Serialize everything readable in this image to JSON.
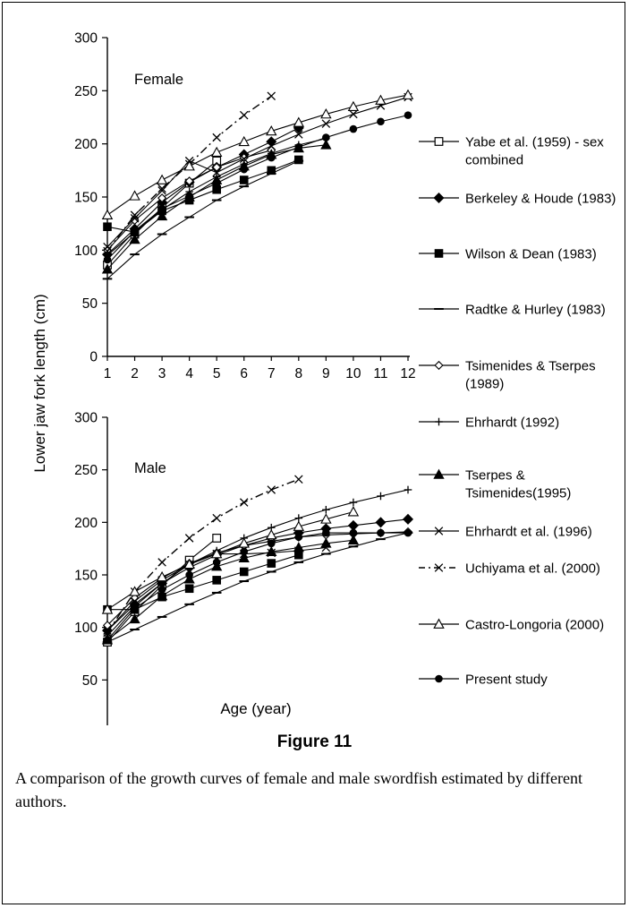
{
  "figure": {
    "title": "Figure 11",
    "caption": "A comparison of the growth curves of female and male swordfish estimated by different authors."
  },
  "chart_data": {
    "type": "line",
    "ylabel": "Lower jaw fork length (cm)",
    "xlabel": "Age (year)",
    "x": [
      1,
      2,
      3,
      4,
      5,
      6,
      7,
      8,
      9,
      10,
      11,
      12
    ],
    "ylim": [
      0,
      300
    ],
    "yticks": [
      0,
      50,
      100,
      150,
      200,
      250,
      300
    ],
    "legend_placement": "right",
    "series_styles": [
      {
        "marker": "square-open",
        "dash": "solid",
        "color": "#000000"
      },
      {
        "marker": "diamond-filled",
        "dash": "solid",
        "color": "#000000"
      },
      {
        "marker": "square-filled",
        "dash": "solid",
        "color": "#000000"
      },
      {
        "marker": "hbar",
        "dash": "solid",
        "color": "#000000"
      },
      {
        "marker": "diamond-open",
        "dash": "solid",
        "color": "#000000"
      },
      {
        "marker": "plus",
        "dash": "solid",
        "color": "#000000"
      },
      {
        "marker": "triangle-filled",
        "dash": "solid",
        "color": "#000000"
      },
      {
        "marker": "cross",
        "dash": "solid",
        "color": "#000000"
      },
      {
        "marker": "cross",
        "dash": "dashdot",
        "color": "#000000"
      },
      {
        "marker": "triangle-open",
        "dash": "solid",
        "color": "#000000"
      },
      {
        "marker": "circle-filled",
        "dash": "solid",
        "color": "#000000"
      }
    ],
    "legend": [
      "Yabe et al. (1959) - sex combined",
      "Berkeley & Houde (1983)",
      "Wilson & Dean (1983)",
      "Radtke & Hurley (1983)",
      "Tsimenides & Tserpes (1989)",
      "Ehrhardt (1992)",
      "Tserpes & Tsimenides(1995)",
      "Ehrhardt et al. (1996)",
      "Uchiyama et al. (2000)",
      "Castro-Longoria (2000)",
      "Present study"
    ],
    "panels": [
      {
        "label": "Female",
        "series": [
          {
            "x": [
              1,
              2,
              3,
              4,
              5
            ],
            "values": [
              86,
              115,
              140,
              163,
              184
            ]
          },
          {
            "x": [
              1,
              2,
              3,
              4,
              5,
              6,
              7,
              8
            ],
            "values": [
              96,
              120,
              145,
              164,
              178,
              190,
              202,
              215
            ]
          },
          {
            "x": [
              1,
              2,
              3,
              4,
              5,
              6,
              7,
              8
            ],
            "values": [
              122,
              117,
              137,
              147,
              157,
              166,
              175,
              185
            ]
          },
          {
            "x": [
              1,
              2,
              3,
              4,
              5,
              6,
              7,
              8
            ],
            "values": [
              73,
              96,
              115,
              131,
              147,
              160,
              172,
              184
            ]
          },
          {
            "x": [
              1,
              2,
              3,
              4,
              5,
              6,
              7
            ],
            "values": [
              100,
              128,
              149,
              165,
              178,
              187,
              194
            ]
          },
          {
            "x": [
              1,
              2,
              3,
              4,
              5,
              6,
              7,
              8,
              9
            ],
            "values": [
              95,
              117,
              138,
              155,
              169,
              181,
              191,
              199,
              205
            ]
          },
          {
            "x": [
              1,
              2,
              3,
              4,
              5,
              6,
              7,
              8,
              9
            ],
            "values": [
              82,
              110,
              132,
              150,
              166,
              179,
              190,
              196,
              199
            ]
          },
          {
            "x": [
              1,
              2,
              3,
              4,
              5,
              6,
              7,
              8,
              9,
              10,
              11,
              12
            ],
            "values": [
              103,
              130,
              156,
              184,
              173,
              186,
              198,
              209,
              219,
              228,
              236,
              244
            ]
          },
          {
            "x": [
              1,
              2,
              3,
              4,
              5,
              6,
              7
            ],
            "values": [
              99,
              133,
              158,
              181,
              206,
              227,
              245
            ]
          },
          {
            "x": [
              1,
              2,
              3,
              4,
              5,
              6,
              7,
              8,
              9,
              10,
              11,
              12
            ],
            "values": [
              133,
              151,
              166,
              179,
              192,
              202,
              212,
              220,
              228,
              235,
              241,
              246
            ]
          },
          {
            "x": [
              1,
              2,
              3,
              4,
              5,
              6,
              7,
              8,
              9,
              10,
              11,
              12
            ],
            "values": [
              91,
              118,
              139,
              151,
              163,
              176,
              187,
              197,
              206,
              214,
              221,
              227
            ]
          }
        ]
      },
      {
        "label": "Male",
        "series": [
          {
            "x": [
              1,
              2,
              3,
              4,
              5
            ],
            "values": [
              86,
              115,
              140,
              164,
              185
            ]
          },
          {
            "x": [
              1,
              2,
              3,
              4,
              5,
              6,
              7,
              8,
              9,
              10,
              11,
              12
            ],
            "values": [
              97,
              122,
              142,
              157,
              169,
              178,
              185,
              190,
              194,
              197,
              200,
              203
            ]
          },
          {
            "x": [
              1,
              2,
              3,
              4,
              5,
              6,
              7,
              8
            ],
            "values": [
              117,
              117,
              129,
              137,
              145,
              153,
              161,
              169
            ]
          },
          {
            "x": [
              1,
              2,
              3,
              4,
              5,
              6,
              7,
              8,
              9,
              10,
              11,
              12
            ],
            "values": [
              86,
              98,
              110,
              122,
              133,
              144,
              153,
              162,
              170,
              177,
              184,
              190
            ]
          },
          {
            "x": [
              1,
              2,
              3,
              4,
              5,
              6,
              7,
              8,
              9,
              10,
              11,
              12
            ],
            "values": [
              102,
              128,
              147,
              161,
              171,
              178,
              182,
              186,
              188,
              189,
              190,
              191
            ]
          },
          {
            "x": [
              1,
              2,
              3,
              4,
              5,
              6,
              7,
              8,
              9,
              10,
              11,
              12
            ],
            "values": [
              92,
              120,
              142,
              160,
              173,
              185,
              195,
              204,
              212,
              219,
              225,
              231
            ]
          },
          {
            "x": [
              1,
              2,
              3,
              4,
              5,
              6,
              7,
              8,
              9,
              10
            ],
            "values": [
              88,
              108,
              130,
              146,
              158,
              166,
              172,
              176,
              180,
              183
            ]
          },
          {
            "x": [
              1,
              2,
              3,
              4,
              5,
              6,
              7,
              8,
              9
            ],
            "values": [
              97,
              125,
              145,
              160,
              170,
              170,
              171,
              173,
              176
            ]
          },
          {
            "x": [
              1,
              2,
              3,
              4,
              5,
              6,
              7,
              8
            ],
            "values": [
              95,
              134,
              162,
              185,
              204,
              219,
              231,
              241
            ]
          },
          {
            "x": [
              1,
              2,
              3,
              4,
              5,
              6,
              7,
              8,
              9,
              10
            ],
            "values": [
              117,
              134,
              148,
              160,
              170,
              180,
              188,
              196,
              203,
              210
            ]
          },
          {
            "x": [
              1,
              2,
              3,
              4,
              5,
              6,
              7,
              8,
              9,
              10,
              11,
              12
            ],
            "values": [
              88,
              118,
              136,
              150,
              162,
              172,
              180,
              186,
              190,
              190,
              190,
              190
            ]
          }
        ]
      }
    ]
  }
}
